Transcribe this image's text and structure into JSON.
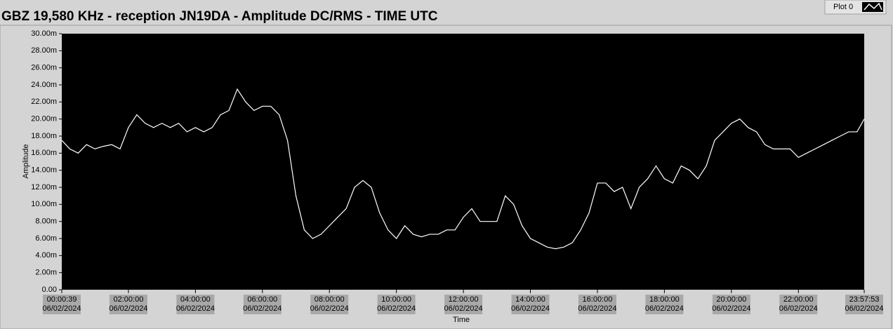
{
  "chart_data": {
    "type": "line",
    "title": "GBZ  19,580 KHz - reception JN19DA -  Amplitude DC/RMS   - TIME UTC",
    "xlabel": "Time",
    "ylabel": "Amplitude",
    "grid": false,
    "legend": "top-right",
    "x": [
      39,
      900,
      1800,
      2700,
      3600,
      4500,
      5400,
      6300,
      7200,
      8100,
      9000,
      9900,
      10800,
      11700,
      12600,
      13500,
      14400,
      15300,
      16200,
      17100,
      18000,
      18900,
      19800,
      20700,
      21600,
      22500,
      23400,
      24300,
      25200,
      26100,
      27000,
      27900,
      28800,
      29700,
      30600,
      31500,
      32400,
      33300,
      34200,
      35100,
      36000,
      36900,
      37800,
      38700,
      39600,
      40500,
      41400,
      42300,
      43200,
      44100,
      45000,
      45900,
      46800,
      47700,
      48600,
      49500,
      50400,
      51300,
      52200,
      53100,
      54000,
      54900,
      55800,
      56700,
      57600,
      58500,
      59400,
      60300,
      61200,
      62100,
      63000,
      63900,
      64800,
      65700,
      66600,
      67500,
      68400,
      69300,
      70200,
      71100,
      72000,
      72900,
      73800,
      74700,
      75600,
      76500,
      77400,
      78300,
      79200,
      80100,
      81000,
      81900,
      82800,
      83700,
      84600,
      85500,
      86273
    ],
    "series": [
      {
        "name": "Plot 0",
        "color": "#ffffff",
        "values": [
          17.5,
          16.5,
          16,
          17,
          16.5,
          16.8,
          17,
          16.5,
          19,
          20.5,
          19.5,
          19,
          19.5,
          19,
          19.5,
          18.5,
          19,
          18.5,
          19,
          20.5,
          21,
          23.5,
          22,
          21,
          21.5,
          21.5,
          20.5,
          17.5,
          11,
          7,
          6,
          6.5,
          7.5,
          8.5,
          9.5,
          12,
          12.8,
          12,
          9,
          7,
          6,
          7.5,
          6.5,
          6.2,
          6.5,
          6.5,
          7,
          7,
          8.5,
          9.5,
          8,
          8,
          8,
          11,
          10,
          7.5,
          6,
          5.5,
          5,
          4.8,
          5,
          5.5,
          7,
          9,
          12.5,
          12.5,
          11.5,
          12,
          9.5,
          12,
          13,
          14.5,
          13,
          12.5,
          14.5,
          14,
          13,
          14.5,
          17.5,
          18.5,
          19.5,
          20,
          19,
          18.5,
          17,
          16.5,
          16.5,
          16.5,
          15.5,
          16,
          16.5,
          17,
          17.5,
          18,
          18.5,
          18.5,
          20
        ]
      }
    ],
    "xlim": [
      39,
      86273
    ],
    "xticks": [
      {
        "value": 39,
        "label": [
          "00:00:39",
          "06/02/2024"
        ]
      },
      {
        "value": 7200,
        "label": [
          "02:00:00",
          "06/02/2024"
        ]
      },
      {
        "value": 14400,
        "label": [
          "04:00:00",
          "06/02/2024"
        ]
      },
      {
        "value": 21600,
        "label": [
          "06:00:00",
          "06/02/2024"
        ]
      },
      {
        "value": 28800,
        "label": [
          "08:00:00",
          "06/02/2024"
        ]
      },
      {
        "value": 36000,
        "label": [
          "10:00:00",
          "06/02/2024"
        ]
      },
      {
        "value": 43200,
        "label": [
          "12:00:00",
          "06/02/2024"
        ]
      },
      {
        "value": 50400,
        "label": [
          "14:00:00",
          "06/02/2024"
        ]
      },
      {
        "value": 57600,
        "label": [
          "16:00:00",
          "06/02/2024"
        ]
      },
      {
        "value": 64800,
        "label": [
          "18:00:00",
          "06/02/2024"
        ]
      },
      {
        "value": 72000,
        "label": [
          "20:00:00",
          "06/02/2024"
        ]
      },
      {
        "value": 79200,
        "label": [
          "22:00:00",
          "06/02/2024"
        ]
      },
      {
        "value": 86273,
        "label": [
          "23:57:53",
          "06/02/2024"
        ]
      }
    ],
    "ylim": [
      0,
      30
    ],
    "yticks": [
      {
        "value": 0,
        "label": "0.00"
      },
      {
        "value": 2,
        "label": "2.00m"
      },
      {
        "value": 4,
        "label": "4.00m"
      },
      {
        "value": 6,
        "label": "6.00m"
      },
      {
        "value": 8,
        "label": "8.00m"
      },
      {
        "value": 10,
        "label": "10.00m"
      },
      {
        "value": 12,
        "label": "12.00m"
      },
      {
        "value": 14,
        "label": "14.00m"
      },
      {
        "value": 16,
        "label": "16.00m"
      },
      {
        "value": 18,
        "label": "18.00m"
      },
      {
        "value": 20,
        "label": "20.00m"
      },
      {
        "value": 22,
        "label": "22.00m"
      },
      {
        "value": 24,
        "label": "24.00m"
      },
      {
        "value": 26,
        "label": "26.00m"
      },
      {
        "value": 28,
        "label": "28.00m"
      },
      {
        "value": 30,
        "label": "30.00m"
      }
    ]
  }
}
